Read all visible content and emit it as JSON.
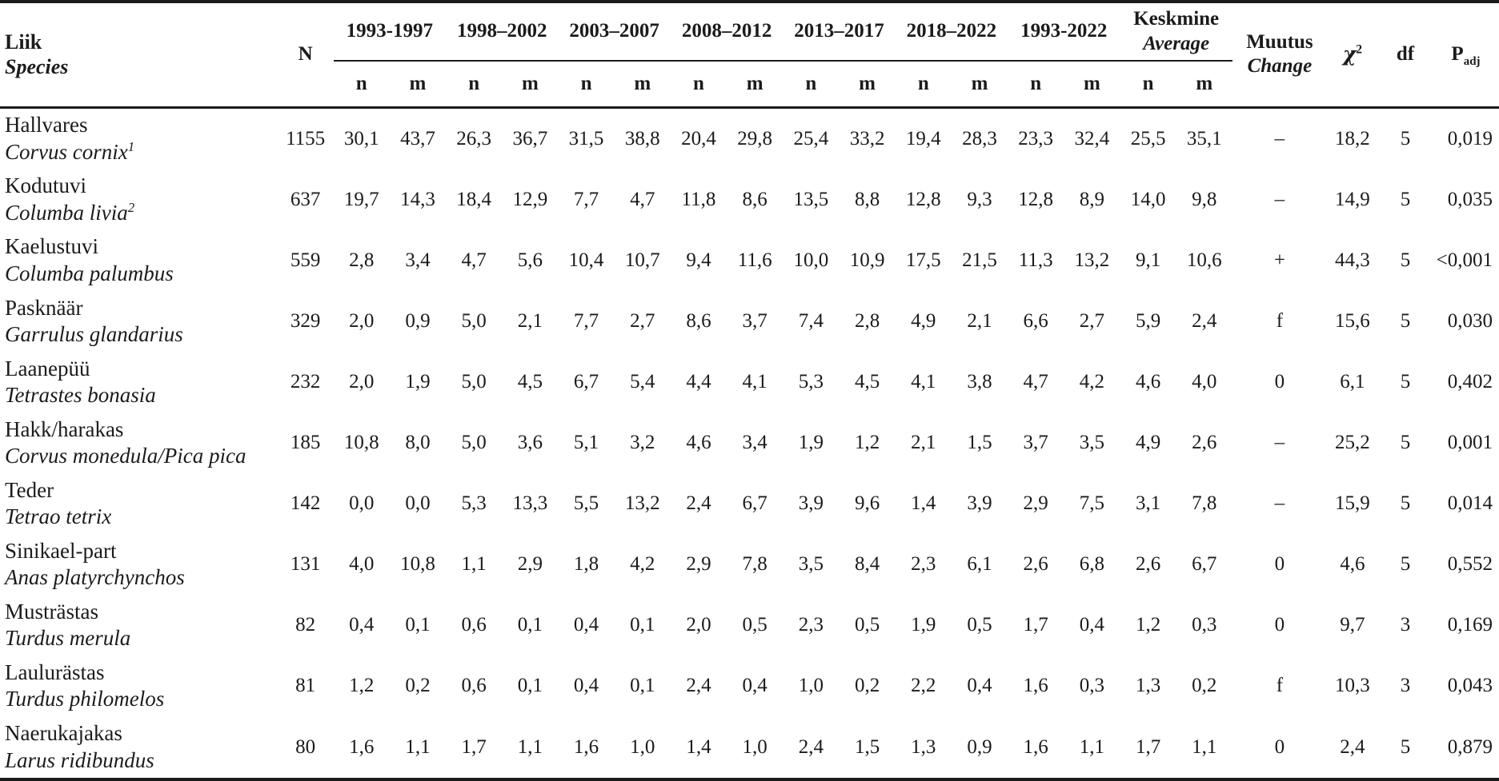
{
  "table": {
    "header": {
      "species_et": "Liik",
      "species_en": "Species",
      "n": "N",
      "periods": [
        "1993-1997",
        "1998–2002",
        "2003–2007",
        "2008–2012",
        "2013–2017",
        "2018–2022",
        "1993-2022"
      ],
      "average_et": "Keskmine",
      "average_en": "Average",
      "change_et": "Muutus",
      "change_en": "Change",
      "chi": "χ",
      "chi_sup": "2",
      "df": "df",
      "p": "P",
      "p_sub": "adj"
    },
    "subcols": [
      "n",
      "m",
      "n",
      "m",
      "n",
      "m",
      "n",
      "m",
      "n",
      "m",
      "n",
      "m",
      "n",
      "m",
      "n",
      "m"
    ],
    "rows": [
      {
        "name_et": "Hallvares",
        "name_sci": "Corvus cornix",
        "name_sup": "1",
        "n_total": "1155",
        "values": [
          "30,1",
          "43,7",
          "26,3",
          "36,7",
          "31,5",
          "38,8",
          "20,4",
          "29,8",
          "25,4",
          "33,2",
          "19,4",
          "28,3",
          "23,3",
          "32,4",
          "25,5",
          "35,1"
        ],
        "change": "–",
        "chi2": "18,2",
        "df": "5",
        "p_adj": "0,019"
      },
      {
        "name_et": "Kodutuvi",
        "name_sci": "Columba livia",
        "name_sup": "2",
        "n_total": "637",
        "values": [
          "19,7",
          "14,3",
          "18,4",
          "12,9",
          "7,7",
          "4,7",
          "11,8",
          "8,6",
          "13,5",
          "8,8",
          "12,8",
          "9,3",
          "12,8",
          "8,9",
          "14,0",
          "9,8"
        ],
        "change": "–",
        "chi2": "14,9",
        "df": "5",
        "p_adj": "0,035"
      },
      {
        "name_et": "Kaelustuvi",
        "name_sci": "Columba palumbus",
        "n_total": "559",
        "values": [
          "2,8",
          "3,4",
          "4,7",
          "5,6",
          "10,4",
          "10,7",
          "9,4",
          "11,6",
          "10,0",
          "10,9",
          "17,5",
          "21,5",
          "11,3",
          "13,2",
          "9,1",
          "10,6"
        ],
        "change": "+",
        "chi2": "44,3",
        "df": "5",
        "p_adj": "<0,001"
      },
      {
        "name_et": "Pasknäär",
        "name_sci": "Garrulus glandarius",
        "n_total": "329",
        "values": [
          "2,0",
          "0,9",
          "5,0",
          "2,1",
          "7,7",
          "2,7",
          "8,6",
          "3,7",
          "7,4",
          "2,8",
          "4,9",
          "2,1",
          "6,6",
          "2,7",
          "5,9",
          "2,4"
        ],
        "change": "f",
        "chi2": "15,6",
        "df": "5",
        "p_adj": "0,030"
      },
      {
        "name_et": "Laanepüü",
        "name_sci": "Tetrastes bonasia",
        "n_total": "232",
        "values": [
          "2,0",
          "1,9",
          "5,0",
          "4,5",
          "6,7",
          "5,4",
          "4,4",
          "4,1",
          "5,3",
          "4,5",
          "4,1",
          "3,8",
          "4,7",
          "4,2",
          "4,6",
          "4,0"
        ],
        "change": "0",
        "chi2": "6,1",
        "df": "5",
        "p_adj": "0,402"
      },
      {
        "name_et": "Hakk/harakas",
        "name_sci": "Corvus monedula/Pica pica",
        "n_total": "185",
        "values": [
          "10,8",
          "8,0",
          "5,0",
          "3,6",
          "5,1",
          "3,2",
          "4,6",
          "3,4",
          "1,9",
          "1,2",
          "2,1",
          "1,5",
          "3,7",
          "3,5",
          "4,9",
          "2,6"
        ],
        "change": "–",
        "chi2": "25,2",
        "df": "5",
        "p_adj": "0,001"
      },
      {
        "name_et": "Teder",
        "name_sci": "Tetrao tetrix",
        "n_total": "142",
        "values": [
          "0,0",
          "0,0",
          "5,3",
          "13,3",
          "5,5",
          "13,2",
          "2,4",
          "6,7",
          "3,9",
          "9,6",
          "1,4",
          "3,9",
          "2,9",
          "7,5",
          "3,1",
          "7,8"
        ],
        "change": "–",
        "chi2": "15,9",
        "df": "5",
        "p_adj": "0,014"
      },
      {
        "name_et": "Sinikael-part",
        "name_sci": "Anas platyrchynchos",
        "n_total": "131",
        "values": [
          "4,0",
          "10,8",
          "1,1",
          "2,9",
          "1,8",
          "4,2",
          "2,9",
          "7,8",
          "3,5",
          "8,4",
          "2,3",
          "6,1",
          "2,6",
          "6,8",
          "2,6",
          "6,7"
        ],
        "change": "0",
        "chi2": "4,6",
        "df": "5",
        "p_adj": "0,552"
      },
      {
        "name_et": "Musträstas",
        "name_sci": "Turdus merula",
        "n_total": "82",
        "values": [
          "0,4",
          "0,1",
          "0,6",
          "0,1",
          "0,4",
          "0,1",
          "2,0",
          "0,5",
          "2,3",
          "0,5",
          "1,9",
          "0,5",
          "1,7",
          "0,4",
          "1,2",
          "0,3"
        ],
        "change": "0",
        "chi2": "9,7",
        "df": "3",
        "p_adj": "0,169"
      },
      {
        "name_et": "Laulurästas",
        "name_sci": "Turdus philomelos",
        "n_total": "81",
        "values": [
          "1,2",
          "0,2",
          "0,6",
          "0,1",
          "0,4",
          "0,1",
          "2,4",
          "0,4",
          "1,0",
          "0,2",
          "2,2",
          "0,4",
          "1,6",
          "0,3",
          "1,3",
          "0,2"
        ],
        "change": "f",
        "chi2": "10,3",
        "df": "3",
        "p_adj": "0,043"
      },
      {
        "name_et": "Naerukajakas",
        "name_sci": "Larus ridibundus",
        "n_total": "80",
        "values": [
          "1,6",
          "1,1",
          "1,7",
          "1,1",
          "1,6",
          "1,0",
          "1,4",
          "1,0",
          "2,4",
          "1,5",
          "1,3",
          "0,9",
          "1,6",
          "1,1",
          "1,7",
          "1,1"
        ],
        "change": "0",
        "chi2": "2,4",
        "df": "5",
        "p_adj": "0,879"
      }
    ]
  }
}
